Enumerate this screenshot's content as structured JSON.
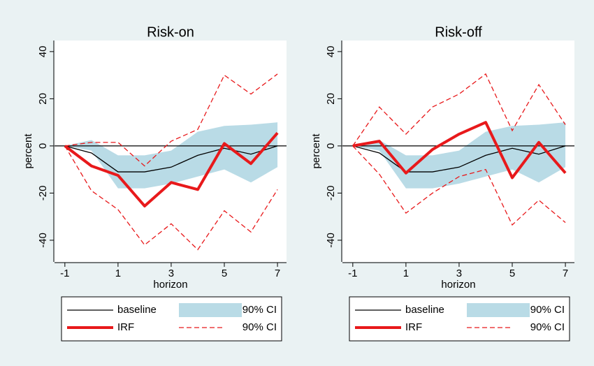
{
  "chart_data": [
    {
      "type": "line",
      "title": "Risk-on",
      "x_label": "horizon",
      "y_label": "percent",
      "x": [
        -1,
        0,
        1,
        2,
        3,
        4,
        5,
        6,
        7
      ],
      "xlim": [
        -1.39,
        7.34
      ],
      "ylim": [
        -49.2,
        44.7
      ],
      "xticks": [
        -1,
        1,
        3,
        5,
        7
      ],
      "yticks": [
        -40,
        -20,
        0,
        20,
        40
      ],
      "yline": 0,
      "series": [
        {
          "name": "baseline",
          "style": "line",
          "color": "#000000",
          "values": [
            0,
            -3,
            -11,
            -11,
            -9,
            -4,
            -1,
            -3.5,
            0
          ]
        },
        {
          "name": "90% CI",
          "style": "band",
          "color": "#b9dbe6",
          "lower": [
            0,
            -2,
            -18,
            -18,
            -16,
            -13,
            -10,
            -15.5,
            -9
          ],
          "upper": [
            0,
            2.5,
            -4,
            -4,
            -2,
            6,
            8.5,
            9,
            10
          ]
        },
        {
          "name": "IRF",
          "style": "thick",
          "color": "#e8191b",
          "values": [
            0,
            -8.5,
            -12.5,
            -25.5,
            -15.5,
            -18.5,
            1,
            -7.5,
            5.5
          ]
        },
        {
          "name": "90% CI",
          "style": "dashed",
          "color": "#e8191b",
          "lower": [
            0,
            -19,
            -27,
            -42,
            -33,
            -44,
            -27.5,
            -36.5,
            -18.5
          ],
          "upper": [
            0,
            1.5,
            1.5,
            -8.5,
            2,
            7,
            30,
            22,
            30.5
          ]
        }
      ]
    },
    {
      "type": "line",
      "title": "Risk-off",
      "x_label": "horizon",
      "y_label": "percent",
      "x": [
        -1,
        0,
        1,
        2,
        3,
        4,
        5,
        6,
        7
      ],
      "xlim": [
        -1.39,
        7.34
      ],
      "ylim": [
        -49.2,
        44.7
      ],
      "xticks": [
        -1,
        1,
        3,
        5,
        7
      ],
      "yticks": [
        -40,
        -20,
        0,
        20,
        40
      ],
      "yline": 0,
      "series": [
        {
          "name": "baseline",
          "style": "line",
          "color": "#000000",
          "values": [
            0,
            -3,
            -11,
            -11,
            -9,
            -4,
            -1,
            -3.5,
            0
          ]
        },
        {
          "name": "90% CI",
          "style": "band",
          "color": "#b9dbe6",
          "lower": [
            0,
            -2,
            -18,
            -18,
            -16,
            -13,
            -10,
            -15.5,
            -9
          ],
          "upper": [
            0,
            2.5,
            -4,
            -4,
            -2,
            6,
            8.5,
            9,
            10
          ]
        },
        {
          "name": "IRF",
          "style": "thick",
          "color": "#e8191b",
          "values": [
            0,
            2,
            -11.5,
            -1.5,
            5,
            10,
            -13.5,
            1.5,
            -11.5
          ]
        },
        {
          "name": "90% CI",
          "style": "dashed",
          "color": "#e8191b",
          "lower": [
            0,
            -12,
            -28.5,
            -20,
            -13,
            -10,
            -33.5,
            -23,
            -32.5
          ],
          "upper": [
            0,
            16.5,
            5,
            16.5,
            22,
            30.5,
            6.5,
            26,
            9
          ]
        }
      ]
    }
  ]
}
